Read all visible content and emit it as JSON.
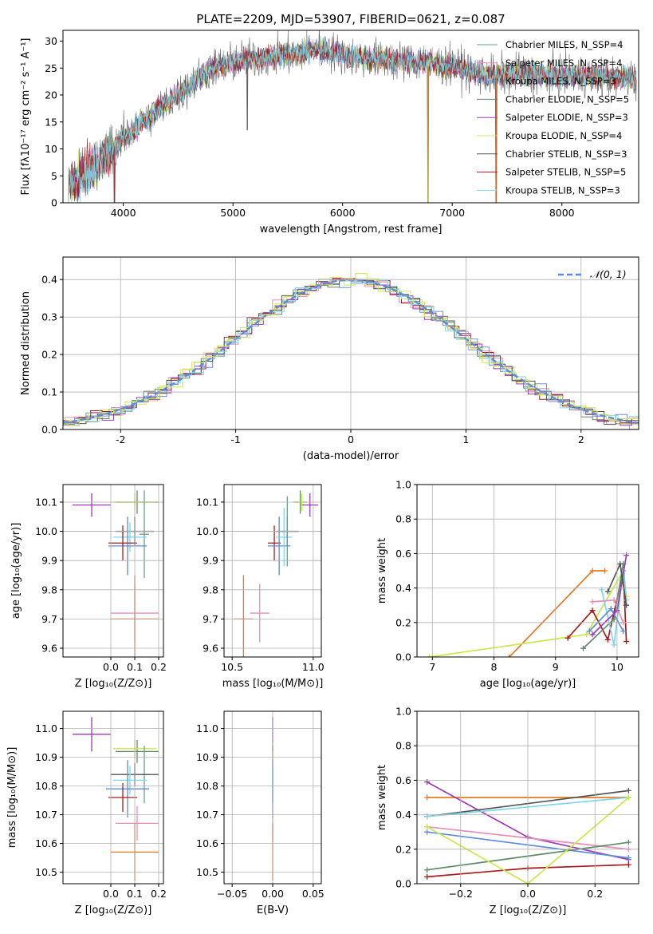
{
  "figure": {
    "title": "PLATE=2209, MJD=53907, FIBERID=0621, z=0.087",
    "colors": [
      "#6f9a8a",
      "#e58fb8",
      "#6f8fdc",
      "#5e8a66",
      "#9c3cb3",
      "#dbe06a",
      "#555555",
      "#a61c1c",
      "#7fd6e8",
      "#e07b2a",
      "#5b8bd9",
      "#c9e84a"
    ]
  },
  "chart_data": [
    {
      "id": "spectrum",
      "type": "line",
      "title": "PLATE=2209, MJD=53907, FIBERID=0621, z=0.087",
      "xlabel": "wavelength [Angstrom, rest frame]",
      "ylabel": "Flux [fλ10⁻¹⁷ erg cm⁻² s⁻¹ A⁻¹]",
      "xlim": [
        3450,
        8700
      ],
      "ylim": [
        0,
        32
      ],
      "xticks": [
        4000,
        5000,
        6000,
        7000,
        8000
      ],
      "yticks": [
        0,
        5,
        10,
        15,
        20,
        25,
        30
      ],
      "grid": false,
      "legend_position": "upper-right",
      "continuum": [
        [
          3500,
          3
        ],
        [
          3800,
          8
        ],
        [
          4000,
          12
        ],
        [
          4300,
          17
        ],
        [
          4500,
          20
        ],
        [
          4800,
          25
        ],
        [
          5100,
          26.5
        ],
        [
          5500,
          27.5
        ],
        [
          5800,
          28.5
        ],
        [
          6100,
          27
        ],
        [
          6400,
          26.5
        ],
        [
          6800,
          26
        ],
        [
          7100,
          25
        ],
        [
          7300,
          23.5
        ],
        [
          7600,
          24
        ],
        [
          7900,
          23.5
        ],
        [
          8200,
          23.5
        ],
        [
          8650,
          23
        ]
      ],
      "noise_amplitude": 3,
      "features": [
        {
          "x": 5130,
          "y": 13.5
        },
        {
          "x": 6780,
          "y": 0
        },
        {
          "x": 7400,
          "y": 0
        },
        {
          "x": 3920,
          "y": 0
        }
      ],
      "series": [
        {
          "name": "Chabrier MILES, N_SSP=4",
          "color": "#6f9a8a"
        },
        {
          "name": "Salpeter MILES, N_SSP=4",
          "color": "#e58fb8"
        },
        {
          "name": "Kroupa MILES, N_SSP=3",
          "color": "#6f8fdc"
        },
        {
          "name": "Chabrier ELODIE, N_SSP=5",
          "color": "#5e8a66"
        },
        {
          "name": "Salpeter ELODIE, N_SSP=3",
          "color": "#9c3cb3"
        },
        {
          "name": "Kroupa ELODIE, N_SSP=4",
          "color": "#dbe06a"
        },
        {
          "name": "Chabrier STELIB, N_SSP=3",
          "color": "#555555"
        },
        {
          "name": "Salpeter STELIB, N_SSP=5",
          "color": "#a61c1c"
        },
        {
          "name": "Kroupa STELIB, N_SSP=3",
          "color": "#7fd6e8"
        }
      ]
    },
    {
      "id": "residuals",
      "type": "histogram",
      "xlabel": "(data-model)/error",
      "ylabel": "Normed distribution",
      "xlim": [
        -2.5,
        2.5
      ],
      "ylim": [
        0,
        0.46
      ],
      "xticks": [
        -2,
        -1,
        0,
        1,
        2
      ],
      "yticks": [
        0.0,
        0.1,
        0.2,
        0.3,
        0.4
      ],
      "grid": true,
      "legend_position": "upper-right",
      "reference": {
        "name": "𝒩(0, 1)",
        "color": "#5b8bd9",
        "mean": 0,
        "sigma": 1
      },
      "bin_width": 0.1,
      "series_colors": [
        "#5e8a66",
        "#e58fb8",
        "#a61c1c",
        "#6f8fdc",
        "#dbe06a",
        "#9c3cb3",
        "#555555",
        "#7fd6e8",
        "#c9e84a"
      ]
    },
    {
      "id": "age-vs-Z",
      "type": "scatter",
      "xlabel": "Z [log₁₀(Z/Z⊙)]",
      "ylabel": "age  [log₁₀(age/yr)]",
      "xlim": [
        -0.2,
        0.22
      ],
      "ylim": [
        9.57,
        10.16
      ],
      "xticks": [
        0.0,
        0.1,
        0.2
      ],
      "xtick_labels": [
        "0.0",
        "0.1",
        "0.2"
      ],
      "yticks": [
        9.6,
        9.7,
        9.8,
        9.9,
        10.0,
        10.1
      ],
      "grid": true,
      "points": [
        {
          "x": -0.08,
          "y": 10.09,
          "xerr": 0.08,
          "yerr": 0.04,
          "color": "#9c3cb3"
        },
        {
          "x": 0.11,
          "y": 10.1,
          "xerr": 0.09,
          "yerr": 0.04,
          "color": "#5e8a66"
        },
        {
          "x": 0.1,
          "y": 10.1,
          "xerr": 0.09,
          "yerr": 0.03,
          "color": "#c9e84a"
        },
        {
          "x": 0.1,
          "y": 10.0,
          "xerr": 0.08,
          "yerr": 0.05,
          "color": "#555555"
        },
        {
          "x": 0.14,
          "y": 9.99,
          "xerr": 0.02,
          "yerr": 0.15,
          "color": "#6f9a8a"
        },
        {
          "x": 0.08,
          "y": 9.98,
          "xerr": 0.07,
          "yerr": 0.05,
          "color": "#7fd6e8"
        },
        {
          "x": 0.07,
          "y": 9.95,
          "xerr": 0.08,
          "yerr": 0.1,
          "color": "#5b8bd9"
        },
        {
          "x": 0.05,
          "y": 9.96,
          "xerr": 0.06,
          "yerr": 0.06,
          "color": "#a61c1c"
        },
        {
          "x": 0.1,
          "y": 9.72,
          "xerr": 0.1,
          "yerr": 0.1,
          "color": "#e58fb8"
        },
        {
          "x": 0.1,
          "y": 9.7,
          "xerr": 0.1,
          "yerr": 0.15,
          "color": "#e07b2a"
        }
      ]
    },
    {
      "id": "age-vs-mass",
      "type": "scatter",
      "xlabel": "mass [log₁₀(M/M⊙)]",
      "ylabel": "",
      "xlim": [
        10.45,
        11.05
      ],
      "ylim": [
        9.57,
        10.16
      ],
      "xticks": [
        10.5,
        11.0
      ],
      "xtick_labels": [
        "10.5",
        "11.0"
      ],
      "yticks": [
        9.6,
        9.7,
        9.8,
        9.9,
        10.0,
        10.1
      ],
      "grid": true,
      "points": [
        {
          "x": 10.57,
          "y": 9.7,
          "xerr": 0.06,
          "yerr": 0.15,
          "color": "#e07b2a"
        },
        {
          "x": 10.67,
          "y": 9.72,
          "xerr": 0.06,
          "yerr": 0.1,
          "color": "#e58fb8"
        },
        {
          "x": 10.76,
          "y": 9.96,
          "xerr": 0.04,
          "yerr": 0.06,
          "color": "#a61c1c"
        },
        {
          "x": 10.79,
          "y": 9.95,
          "xerr": 0.07,
          "yerr": 0.1,
          "color": "#5b8bd9"
        },
        {
          "x": 10.82,
          "y": 9.98,
          "xerr": 0.05,
          "yerr": 0.1,
          "color": "#7fd6e8"
        },
        {
          "x": 10.84,
          "y": 10.0,
          "xerr": 0.07,
          "yerr": 0.05,
          "color": "#555555"
        },
        {
          "x": 10.84,
          "y": 10.0,
          "xerr": 0.02,
          "yerr": 0.12,
          "color": "#6f9a8a"
        },
        {
          "x": 10.92,
          "y": 10.1,
          "xerr": 0.04,
          "yerr": 0.04,
          "color": "#5e8a66"
        },
        {
          "x": 10.93,
          "y": 10.1,
          "xerr": 0.05,
          "yerr": 0.03,
          "color": "#c9e84a"
        },
        {
          "x": 10.98,
          "y": 10.09,
          "xerr": 0.05,
          "yerr": 0.04,
          "color": "#9c3cb3"
        }
      ]
    },
    {
      "id": "weight-vs-age",
      "type": "line",
      "xlabel": "age  [log₁₀(age/yr)]",
      "ylabel": "mass weight",
      "xlim": [
        6.75,
        10.35
      ],
      "ylim": [
        0,
        1.0
      ],
      "xticks": [
        7,
        8,
        9,
        10
      ],
      "xtick_labels": [
        "7",
        "8",
        "9",
        "10"
      ],
      "yticks": [
        0.0,
        0.2,
        0.4,
        0.6,
        0.8,
        1.0
      ],
      "grid": true,
      "series": [
        {
          "color": "#e07b2a",
          "points": [
            [
              8.25,
              0
            ],
            [
              9.6,
              0.5
            ],
            [
              9.8,
              0.5
            ]
          ]
        },
        {
          "color": "#c9e84a",
          "points": [
            [
              6.95,
              0
            ],
            [
              9.5,
              0.13
            ],
            [
              10.1,
              0.5
            ],
            [
              10.15,
              0.35
            ]
          ]
        },
        {
          "color": "#a61c1c",
          "points": [
            [
              9.2,
              0.11
            ],
            [
              9.6,
              0.27
            ],
            [
              9.85,
              0.1
            ],
            [
              10.1,
              0.5
            ],
            [
              10.15,
              0.09
            ]
          ]
        },
        {
          "color": "#5e8a66",
          "points": [
            [
              9.45,
              0.05
            ],
            [
              9.95,
              0.22
            ],
            [
              10.1,
              0.54
            ],
            [
              10.15,
              0.3
            ]
          ]
        },
        {
          "color": "#7fd6e8",
          "points": [
            [
              9.75,
              0.39
            ],
            [
              9.95,
              0.07
            ],
            [
              10.1,
              0.5
            ],
            [
              10.15,
              0.33
            ]
          ]
        },
        {
          "color": "#e58fb8",
          "points": [
            [
              9.6,
              0.32
            ],
            [
              9.95,
              0.33
            ],
            [
              10.1,
              0.2
            ]
          ]
        },
        {
          "color": "#5b8bd9",
          "points": [
            [
              9.55,
              0.15
            ],
            [
              9.9,
              0.28
            ],
            [
              10.1,
              0.15
            ]
          ]
        },
        {
          "color": "#9c3cb3",
          "points": [
            [
              9.6,
              0.13
            ],
            [
              10.0,
              0.27
            ],
            [
              10.15,
              0.59
            ]
          ]
        },
        {
          "color": "#555555",
          "points": [
            [
              9.85,
              0.38
            ],
            [
              10.05,
              0.54
            ],
            [
              10.15,
              0.3
            ]
          ]
        }
      ]
    },
    {
      "id": "mass-vs-Z",
      "type": "scatter",
      "xlabel": "Z [log₁₀(Z/Z⊙)]",
      "ylabel": "mass [log₁₀(M/M⊙)]",
      "xlim": [
        -0.2,
        0.22
      ],
      "ylim": [
        10.46,
        11.06
      ],
      "xticks": [
        0.0,
        0.1,
        0.2
      ],
      "xtick_labels": [
        "0.0",
        "0.1",
        "0.2"
      ],
      "yticks": [
        10.5,
        10.6,
        10.7,
        10.8,
        10.9,
        11.0
      ],
      "grid": true,
      "points": [
        {
          "x": -0.08,
          "y": 10.98,
          "xerr": 0.08,
          "yerr": 0.06,
          "color": "#9c3cb3"
        },
        {
          "x": 0.11,
          "y": 10.92,
          "xerr": 0.09,
          "yerr": 0.04,
          "color": "#5e8a66"
        },
        {
          "x": 0.1,
          "y": 10.93,
          "xerr": 0.09,
          "yerr": 0.03,
          "color": "#c9e84a"
        },
        {
          "x": 0.14,
          "y": 10.84,
          "xerr": 0.02,
          "yerr": 0.1,
          "color": "#6f9a8a"
        },
        {
          "x": 0.1,
          "y": 10.84,
          "xerr": 0.1,
          "yerr": 0.04,
          "color": "#555555"
        },
        {
          "x": 0.08,
          "y": 10.82,
          "xerr": 0.07,
          "yerr": 0.05,
          "color": "#7fd6e8"
        },
        {
          "x": 0.07,
          "y": 10.79,
          "xerr": 0.09,
          "yerr": 0.1,
          "color": "#5b8bd9"
        },
        {
          "x": 0.05,
          "y": 10.76,
          "xerr": 0.06,
          "yerr": 0.05,
          "color": "#a61c1c"
        },
        {
          "x": 0.11,
          "y": 10.67,
          "xerr": 0.09,
          "yerr": 0.06,
          "color": "#e58fb8"
        },
        {
          "x": 0.1,
          "y": 10.57,
          "xerr": 0.1,
          "yerr": 0.1,
          "color": "#e07b2a"
        }
      ]
    },
    {
      "id": "mass-vs-ebv",
      "type": "scatter",
      "xlabel": "E(B-V)",
      "ylabel": "",
      "xlim": [
        -0.06,
        0.06
      ],
      "ylim": [
        10.46,
        11.06
      ],
      "xticks": [
        -0.05,
        0.0,
        0.05
      ],
      "xtick_labels": [
        "−0.05",
        "0.00",
        "0.05"
      ],
      "yticks": [
        10.5,
        10.6,
        10.7,
        10.8,
        10.9,
        11.0
      ],
      "grid": true,
      "points": [
        {
          "x": 0,
          "y": 10.98,
          "xerr": 0,
          "yerr": 0.06,
          "color": "#9c3cb3"
        },
        {
          "x": 0,
          "y": 10.92,
          "xerr": 0,
          "yerr": 0.03,
          "color": "#c9e84a"
        },
        {
          "x": 0,
          "y": 10.84,
          "xerr": 0,
          "yerr": 0.1,
          "color": "#6f9a8a"
        },
        {
          "x": 0,
          "y": 10.82,
          "xerr": 0,
          "yerr": 0.05,
          "color": "#7fd6e8"
        },
        {
          "x": 0,
          "y": 10.79,
          "xerr": 0,
          "yerr": 0.1,
          "color": "#5b8bd9"
        },
        {
          "x": 0,
          "y": 10.67,
          "xerr": 0,
          "yerr": 0.06,
          "color": "#e58fb8"
        },
        {
          "x": 0,
          "y": 10.57,
          "xerr": 0,
          "yerr": 0.1,
          "color": "#e07b2a"
        }
      ]
    },
    {
      "id": "weight-vs-Z",
      "type": "line",
      "xlabel": "Z [log₁₀(Z/Z⊙)]",
      "ylabel": "mass weight",
      "xlim": [
        -0.33,
        0.33
      ],
      "ylim": [
        0,
        1.0
      ],
      "xticks": [
        -0.2,
        0.0,
        0.2
      ],
      "xtick_labels": [
        "−0.2",
        "0.0",
        "0.2"
      ],
      "yticks": [
        0.0,
        0.2,
        0.4,
        0.6,
        0.8,
        1.0
      ],
      "grid": true,
      "series": [
        {
          "color": "#e07b2a",
          "points": [
            [
              -0.3,
              0.5
            ],
            [
              0.3,
              0.5
            ]
          ]
        },
        {
          "color": "#9c3cb3",
          "points": [
            [
              -0.3,
              0.59
            ],
            [
              0.0,
              0.27
            ],
            [
              0.3,
              0.14
            ]
          ]
        },
        {
          "color": "#e58fb8",
          "points": [
            [
              -0.3,
              0.33
            ],
            [
              0.3,
              0.2
            ]
          ]
        },
        {
          "color": "#5b8bd9",
          "points": [
            [
              -0.3,
              0.3
            ],
            [
              0.3,
              0.15
            ]
          ]
        },
        {
          "color": "#555555",
          "points": [
            [
              -0.3,
              0.39
            ],
            [
              0.3,
              0.54
            ]
          ]
        },
        {
          "color": "#7fd6e8",
          "points": [
            [
              -0.3,
              0.39
            ],
            [
              0.3,
              0.5
            ]
          ]
        },
        {
          "color": "#5e8a66",
          "points": [
            [
              -0.3,
              0.08
            ],
            [
              0.3,
              0.24
            ]
          ]
        },
        {
          "color": "#a61c1c",
          "points": [
            [
              -0.3,
              0.04
            ],
            [
              0.0,
              0.09
            ],
            [
              0.3,
              0.11
            ]
          ]
        },
        {
          "color": "#c9e84a",
          "points": [
            [
              -0.3,
              0.33
            ],
            [
              0.0,
              0.0
            ],
            [
              0.3,
              0.5
            ]
          ]
        }
      ]
    }
  ]
}
